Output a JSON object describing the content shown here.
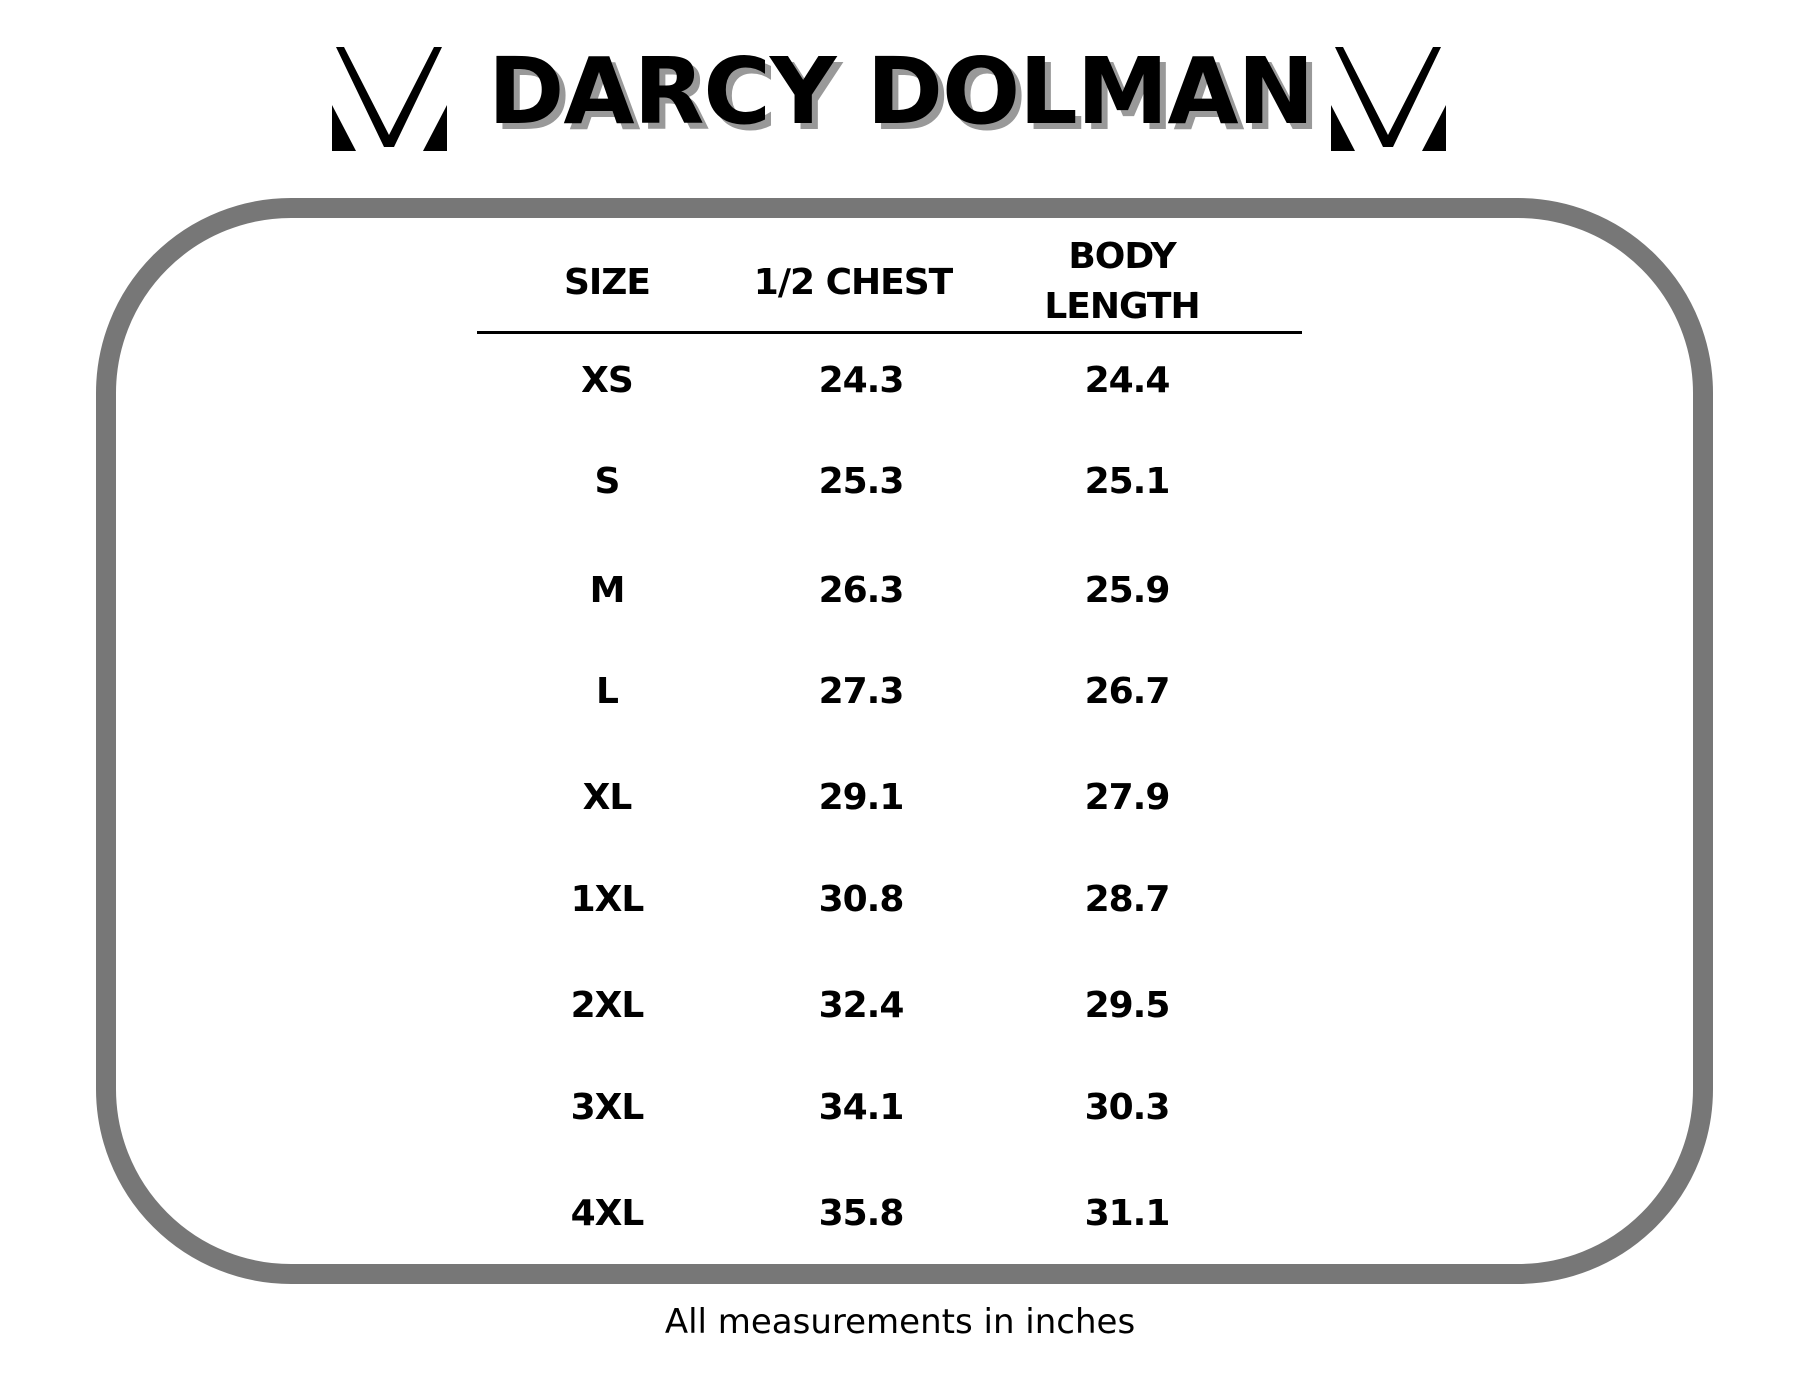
{
  "title": "DARCY DOLMAN",
  "logo_icon": "chevron-m-logo",
  "border_color": "#777777",
  "table": {
    "headers": {
      "size": "SIZE",
      "chest": "1/2 CHEST",
      "body_line1": "BODY",
      "body_line2": "LENGTH"
    },
    "rows": [
      {
        "size": "XS",
        "chest": "24.3",
        "body": "24.4"
      },
      {
        "size": "S",
        "chest": "25.3",
        "body": "25.1"
      },
      {
        "size": "M",
        "chest": "26.3",
        "body": "25.9"
      },
      {
        "size": "L",
        "chest": "27.3",
        "body": "26.7"
      },
      {
        "size": "XL",
        "chest": "29.1",
        "body": "27.9"
      },
      {
        "size": "1XL",
        "chest": "30.8",
        "body": "28.7"
      },
      {
        "size": "2XL",
        "chest": "32.4",
        "body": "29.5"
      },
      {
        "size": "3XL",
        "chest": "34.1",
        "body": "30.3"
      },
      {
        "size": "4XL",
        "chest": "35.8",
        "body": "31.1"
      }
    ]
  },
  "footer": "All measurements in inches"
}
